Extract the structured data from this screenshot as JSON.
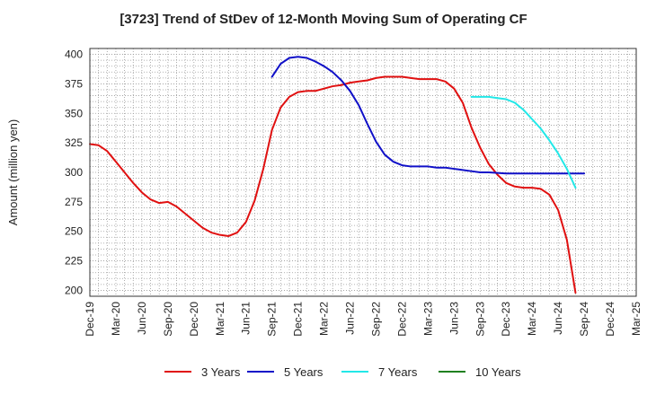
{
  "chart_data": {
    "type": "line",
    "title": "[3723]  Trend of StDev of 12-Month Moving Sum of Operating CF",
    "ylabel": "Amount (million yen)",
    "xlabel": "",
    "ylim": [
      195,
      405
    ],
    "yticks": [
      200,
      225,
      250,
      275,
      300,
      325,
      350,
      375,
      400
    ],
    "x_start": "2019-12",
    "x_end": "2025-03",
    "xticks": [
      "Dec-19",
      "Mar-20",
      "Jun-20",
      "Sep-20",
      "Dec-20",
      "Mar-21",
      "Jun-21",
      "Sep-21",
      "Dec-21",
      "Mar-22",
      "Jun-22",
      "Sep-22",
      "Dec-22",
      "Mar-23",
      "Jun-23",
      "Sep-23",
      "Dec-23",
      "Mar-24",
      "Jun-24",
      "Sep-24",
      "Dec-24",
      "Mar-25"
    ],
    "grid": true,
    "legend_position": "bottom",
    "series": [
      {
        "name": "3 Years",
        "color": "#e01010",
        "x": [
          "2019-12",
          "2020-01",
          "2020-02",
          "2020-03",
          "2020-04",
          "2020-05",
          "2020-06",
          "2020-07",
          "2020-08",
          "2020-09",
          "2020-10",
          "2020-11",
          "2020-12",
          "2021-01",
          "2021-02",
          "2021-03",
          "2021-04",
          "2021-05",
          "2021-06",
          "2021-07",
          "2021-08",
          "2021-09",
          "2021-10",
          "2021-11",
          "2021-12",
          "2022-01",
          "2022-02",
          "2022-03",
          "2022-04",
          "2022-05",
          "2022-06",
          "2022-07",
          "2022-08",
          "2022-09",
          "2022-10",
          "2022-11",
          "2022-12",
          "2023-01",
          "2023-02",
          "2023-03",
          "2023-04",
          "2023-05",
          "2023-06",
          "2023-07",
          "2023-08",
          "2023-09",
          "2023-10",
          "2023-11",
          "2023-12",
          "2024-01",
          "2024-02",
          "2024-03",
          "2024-04",
          "2024-05",
          "2024-06",
          "2024-07",
          "2024-08",
          "2024-09"
        ],
        "values": [
          324,
          323,
          318,
          309,
          300,
          291,
          283,
          277,
          274,
          275,
          271,
          265,
          259,
          253,
          249,
          247,
          246,
          249,
          258,
          276,
          303,
          336,
          355,
          364,
          368,
          369,
          369,
          371,
          373,
          374,
          376,
          377,
          378,
          380,
          381,
          381,
          381,
          380,
          379,
          379,
          379,
          377,
          371,
          359,
          338,
          321,
          307,
          298,
          291,
          288,
          287,
          287,
          286,
          281,
          268,
          243,
          198,
          null
        ]
      },
      {
        "name": "5 Years",
        "color": "#1010c8",
        "x": [
          "2021-09",
          "2021-10",
          "2021-11",
          "2021-12",
          "2022-01",
          "2022-02",
          "2022-03",
          "2022-04",
          "2022-05",
          "2022-06",
          "2022-07",
          "2022-08",
          "2022-09",
          "2022-10",
          "2022-11",
          "2022-12",
          "2023-01",
          "2023-02",
          "2023-03",
          "2023-04",
          "2023-05",
          "2023-06",
          "2023-07",
          "2023-08",
          "2023-09",
          "2023-10",
          "2023-11",
          "2023-12",
          "2024-01",
          "2024-02",
          "2024-03",
          "2024-04",
          "2024-05",
          "2024-06",
          "2024-07",
          "2024-08",
          "2024-09"
        ],
        "values": [
          381,
          392,
          397,
          398,
          397,
          394,
          390,
          385,
          378,
          369,
          357,
          341,
          326,
          315,
          309,
          306,
          305,
          305,
          305,
          304,
          304,
          303,
          302,
          301,
          300,
          300,
          299.5,
          299,
          299,
          299,
          299,
          299,
          299,
          299,
          299,
          299,
          299
        ]
      },
      {
        "name": "7 Years",
        "color": "#22e8e8",
        "x": [
          "2023-08",
          "2023-09",
          "2023-10",
          "2023-11",
          "2023-12",
          "2024-01",
          "2024-02",
          "2024-03",
          "2024-04",
          "2024-05",
          "2024-06",
          "2024-07",
          "2024-08",
          "2024-09"
        ],
        "values": [
          364,
          364,
          364,
          363,
          362,
          359,
          353,
          345,
          337,
          327,
          316,
          303,
          287,
          null
        ]
      },
      {
        "name": "10 Years",
        "color": "#208020",
        "x": [],
        "values": []
      }
    ]
  }
}
